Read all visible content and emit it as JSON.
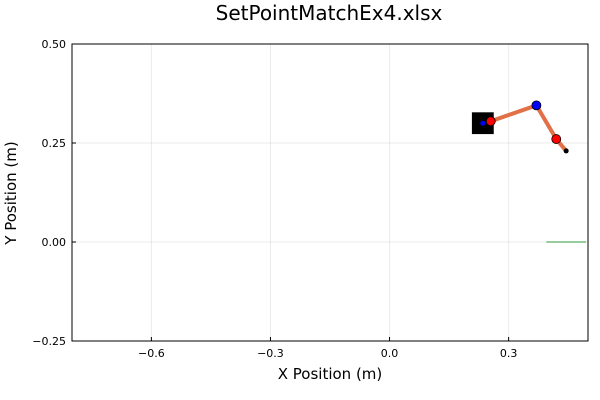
{
  "chart_data": {
    "type": "scatter",
    "title": "SetPointMatchEx4.xlsx",
    "xlabel": "X Position (m)",
    "ylabel": "Y Position (m)",
    "xlim": [
      -0.8,
      0.5
    ],
    "ylim": [
      -0.25,
      0.5
    ],
    "xticks": [
      -0.6,
      -0.3,
      0.0,
      0.3
    ],
    "xtick_labels": [
      "−0.6",
      "−0.3",
      "0.0",
      "0.3"
    ],
    "yticks": [
      -0.25,
      0.0,
      0.25,
      0.5
    ],
    "ytick_labels": [
      "−0.25",
      "0.00",
      "0.25",
      "0.50"
    ],
    "grid": true,
    "colors": {
      "arm": "#e26f46",
      "blue_joint": "#0000ff",
      "red_joint": "#ff0000",
      "target_box": "#000000",
      "ground": "#3da44d"
    },
    "target_box": {
      "x": 0.235,
      "y": 0.3,
      "width": 0.055,
      "height": 0.055
    },
    "target_point": {
      "x": 0.235,
      "y": 0.3
    },
    "arm_path": {
      "x": [
        0.255,
        0.37,
        0.42,
        0.445
      ],
      "y": [
        0.305,
        0.345,
        0.26,
        0.23
      ]
    },
    "blue_joints": [
      {
        "x": 0.37,
        "y": 0.345
      }
    ],
    "red_joints": [
      {
        "x": 0.255,
        "y": 0.305
      },
      {
        "x": 0.42,
        "y": 0.26
      }
    ],
    "end_point": {
      "x": 0.445,
      "y": 0.23
    },
    "ground_line": {
      "x": [
        0.395,
        0.495
      ],
      "y": [
        0.0,
        0.0
      ]
    }
  }
}
